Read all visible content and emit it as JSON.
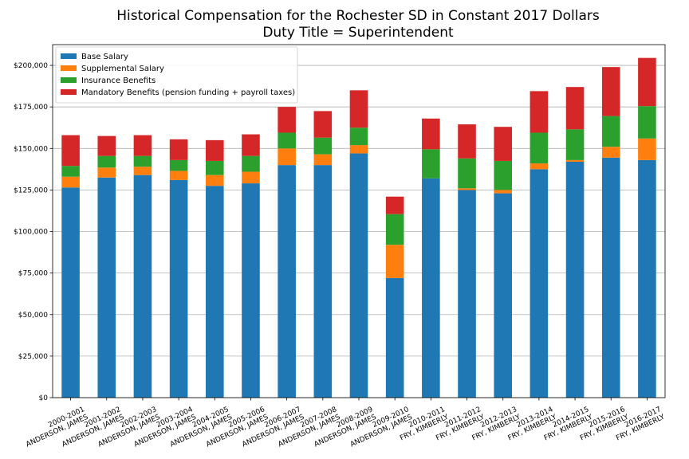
{
  "chart_data": {
    "type": "bar",
    "stacked": true,
    "title": [
      "Historical Compensation for the Rochester SD in Constant 2017 Dollars",
      "Duty Title = Superintendent"
    ],
    "xlabel": "",
    "ylabel": "",
    "ylim": [
      0,
      212500
    ],
    "yticks": [
      0,
      25000,
      50000,
      75000,
      100000,
      125000,
      150000,
      175000,
      200000
    ],
    "ytick_labels": [
      "$0",
      "$25,000",
      "$50,000",
      "$75,000",
      "$100,000",
      "$125,000",
      "$150,000",
      "$175,000",
      "$200,000"
    ],
    "grid": "horizontal",
    "legend_position": "top-left",
    "categories": [
      [
        "2000-2001",
        "ANDERSON, JAMES"
      ],
      [
        "2001-2002",
        "ANDERSON, JAMES"
      ],
      [
        "2002-2003",
        "ANDERSON, JAMES"
      ],
      [
        "2003-2004",
        "ANDERSON, JAMES"
      ],
      [
        "2004-2005",
        "ANDERSON, JAMES"
      ],
      [
        "2005-2006",
        "ANDERSON, JAMES"
      ],
      [
        "2006-2007",
        "ANDERSON, JAMES"
      ],
      [
        "2007-2008",
        "ANDERSON, JAMES"
      ],
      [
        "2008-2009",
        "ANDERSON, JAMES"
      ],
      [
        "2009-2010",
        "ANDERSON, JAMES"
      ],
      [
        "2010-2011",
        "FRY, KIMBERLY"
      ],
      [
        "2011-2012",
        "FRY, KIMBERLY"
      ],
      [
        "2012-2013",
        "FRY, KIMBERLY"
      ],
      [
        "2013-2014",
        "FRY, KIMBERLY"
      ],
      [
        "2014-2015",
        "FRY, KIMBERLY"
      ],
      [
        "2015-2016",
        "FRY, KIMBERLY"
      ],
      [
        "2016-2017",
        "FRY, KIMBERLY"
      ]
    ],
    "series": [
      {
        "name": "Base Salary",
        "color": "#1f77b4",
        "values": [
          126500,
          132500,
          134000,
          131000,
          127500,
          129000,
          140000,
          140000,
          147000,
          72000,
          132000,
          125000,
          123000,
          137500,
          142000,
          144500,
          143000
        ]
      },
      {
        "name": "Supplemental Salary",
        "color": "#ff7f0e",
        "values": [
          6500,
          6000,
          5000,
          5500,
          6500,
          7000,
          10000,
          6500,
          5000,
          20000,
          0,
          1000,
          2000,
          3500,
          1000,
          6500,
          13000
        ]
      },
      {
        "name": "Insurance Benefits",
        "color": "#2ca02c",
        "values": [
          6500,
          7000,
          6500,
          6500,
          8500,
          9500,
          9500,
          10000,
          10500,
          18500,
          17500,
          18000,
          17500,
          18500,
          18500,
          18500,
          19500
        ]
      },
      {
        "name": "Mandatory Benefits (pension funding + payroll taxes)",
        "color": "#d62728",
        "values": [
          18500,
          12000,
          12500,
          12500,
          12500,
          13000,
          15500,
          16000,
          22500,
          10500,
          18500,
          20500,
          20500,
          25000,
          25500,
          29500,
          29000
        ]
      }
    ]
  }
}
